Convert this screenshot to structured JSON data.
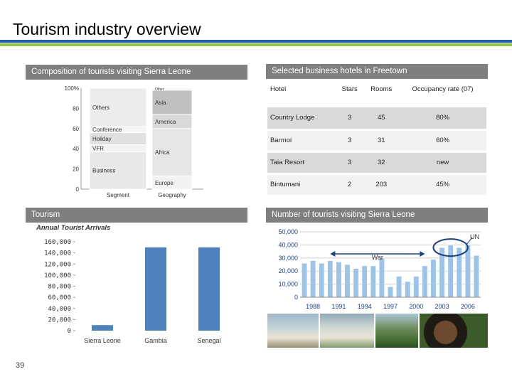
{
  "slide": {
    "title": "Tourism industry overview",
    "page_number": "39"
  },
  "composition": {
    "header": "Composition of tourists visiting Sierra Leone",
    "y_ticks": [
      "100%",
      "80",
      "60",
      "40",
      "20",
      "0"
    ],
    "x_labels": [
      "Segment",
      "Geography"
    ],
    "segment": [
      {
        "label": "Business",
        "from": 0,
        "to": 37
      },
      {
        "label": "VFR",
        "from": 37,
        "to": 44
      },
      {
        "label": "Holiday",
        "from": 44,
        "to": 56
      },
      {
        "label": "Conference",
        "from": 56,
        "to": 62
      },
      {
        "label": "Others",
        "from": 62,
        "to": 100
      }
    ],
    "geography": [
      {
        "label": "Europe",
        "from": 0,
        "to": 13
      },
      {
        "label": "Africa",
        "from": 13,
        "to": 60
      },
      {
        "label": "America",
        "from": 60,
        "to": 74
      },
      {
        "label": "Asia",
        "from": 74,
        "to": 98
      },
      {
        "label": "Other",
        "from": 98,
        "to": 100
      }
    ]
  },
  "hotels": {
    "header": "Selected business hotels in Freetown",
    "columns": [
      "Hotel",
      "Stars",
      "Rooms",
      "Occupancy rate (07)"
    ],
    "rows": [
      {
        "name": "Country Lodge",
        "stars": "3",
        "rooms": "45",
        "occupancy": "80%"
      },
      {
        "name": "Barmoi",
        "stars": "3",
        "rooms": "31",
        "occupancy": "60%"
      },
      {
        "name": "Taia Resort",
        "stars": "3",
        "rooms": "32",
        "occupancy": "new"
      },
      {
        "name": "Bintumani",
        "stars": "2",
        "rooms": "203",
        "occupancy": "45%"
      }
    ]
  },
  "tourism": {
    "header": "Tourism",
    "subtitle": "Annual Tourist Arrivals"
  },
  "visitors": {
    "header": "Number of tourists visiting Sierra Leone",
    "annotation_war": "War",
    "annotation_un": "UN"
  },
  "colors": {
    "bar_blue": "#4f81bd",
    "header_grey": "#7f7f7f",
    "rule_blue": "#1f5fa8",
    "rule_green": "#8dc63f",
    "un_circle": "#1f3f7f"
  },
  "chart_data": [
    {
      "type": "bar",
      "title": "Annual Tourist Arrivals",
      "categories": [
        "Sierra Leone",
        "Gambia",
        "Senegal"
      ],
      "values": [
        10000,
        150000,
        150000
      ],
      "ylim": [
        0,
        160000
      ],
      "y_ticks": [
        "160,000",
        "140,000",
        "120,000",
        "100,000",
        "80,000",
        "60,000",
        "40,000",
        "20,000",
        "0"
      ],
      "grid": false
    },
    {
      "type": "bar",
      "title": "",
      "x_tick_labels": [
        "1988",
        "1991",
        "1994",
        "1997",
        "2000",
        "2003",
        "2006"
      ],
      "years": [
        1987,
        1988,
        1989,
        1990,
        1991,
        1992,
        1993,
        1994,
        1995,
        1996,
        1997,
        1998,
        1999,
        2000,
        2001,
        2002,
        2003,
        2004,
        2005,
        2006,
        2007
      ],
      "values": [
        26000,
        28000,
        26000,
        28000,
        27000,
        25000,
        22000,
        24000,
        24000,
        30000,
        8000,
        16000,
        12000,
        16000,
        24000,
        29000,
        38000,
        40000,
        38000,
        40000,
        32000
      ],
      "ylim": [
        0,
        50000
      ],
      "y_ticks": [
        "50,000",
        "40,000",
        "30,000",
        "20,000",
        "10,000",
        "0"
      ],
      "grid": true
    }
  ]
}
